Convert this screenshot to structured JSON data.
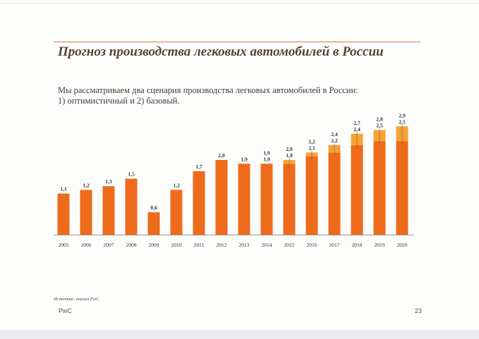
{
  "header": {
    "title": "Прогноз производства легковых автомобилей в России",
    "subtitle_line1": "Мы рассматриваем два сценария производства легковых автомобилей в России:",
    "subtitle_line2": "1) оптимистичный и 2) базовый."
  },
  "footer": {
    "source": "Источник: анализ PwC",
    "brand": "PwC",
    "page_number": "23"
  },
  "colors": {
    "base": "#ee6b1c",
    "optimistic": "#f6a33a",
    "axis": "#999999",
    "title": "#58412f",
    "rule": "#d9764a"
  },
  "chart_data": {
    "type": "bar",
    "stacked": true,
    "categories": [
      "2005",
      "2006",
      "2007",
      "2008",
      "2009",
      "2010",
      "2011",
      "2012",
      "2013",
      "2014",
      "2015",
      "2016",
      "2017",
      "2018",
      "2019",
      "2020"
    ],
    "series": [
      {
        "values": [
          1.1,
          1.2,
          1.3,
          1.5,
          0.6,
          1.2,
          1.7,
          2.0,
          1.9,
          1.9,
          1.9,
          2.1,
          2.2,
          2.4,
          2.5,
          2.5
        ]
      },
      {
        "values": [
          0,
          0,
          0,
          0,
          0,
          0,
          0,
          0,
          0,
          0,
          0.1,
          0.1,
          0.2,
          0.3,
          0.3,
          0.4
        ]
      }
    ],
    "labels_total": [
      "1,1",
      "1,2",
      "1,3",
      "1,5",
      "0,6",
      "1,2",
      "1,7",
      "2,0",
      "1,9",
      "1,9",
      "2,0",
      "2,2",
      "2,4",
      "2,7",
      "2,8",
      "2,9"
    ],
    "labels_base": [
      "",
      "",
      "",
      "",
      "",
      "",
      "",
      "",
      "",
      "1,9",
      "1,9",
      "2,1",
      "2,2",
      "2,4",
      "2,5",
      "2,5"
    ],
    "ylim": [
      0,
      3.0
    ],
    "grid": false,
    "legend": "none"
  }
}
